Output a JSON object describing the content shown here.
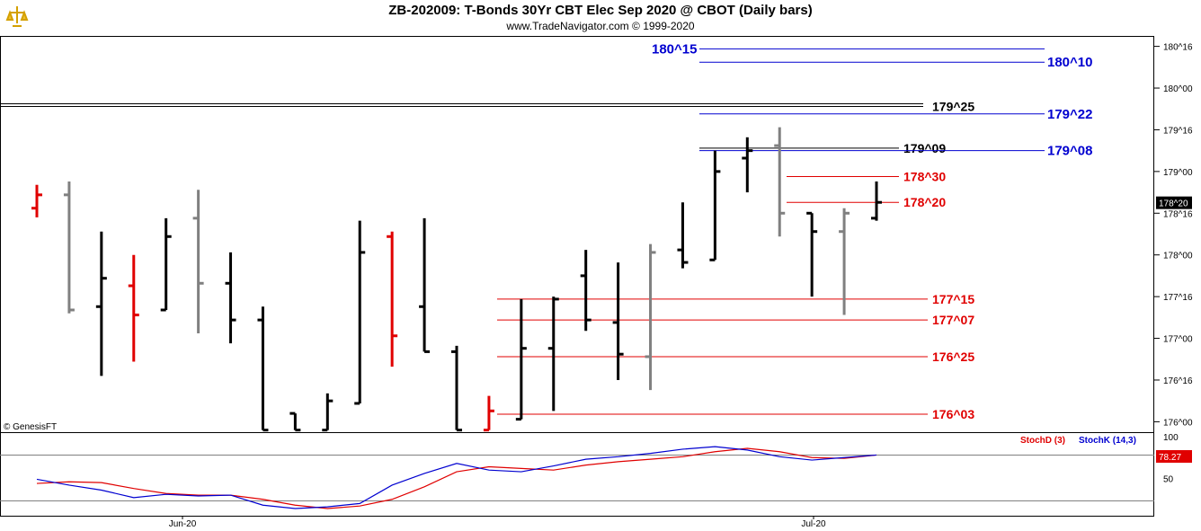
{
  "header": {
    "title": "ZB-202009:  T-Bonds 30Yr CBT Elec Sep 2020 @ CBOT  (Daily bars)",
    "subtitle": "www.TradeNavigator.com © 1999-2020",
    "copyright": "© GenesisFT"
  },
  "chart_data": [
    {
      "type": "bar",
      "subtype": "ohlc",
      "title": "ZB-202009:  T-Bonds 30Yr CBT Elec Sep 2020 @ CBOT  (Daily bars)",
      "units": "points and 32nds",
      "price_axis": {
        "side": "right",
        "range": [
          175.875,
          180.625
        ],
        "ticks": [
          "176^00",
          "176^16",
          "177^00",
          "177^16",
          "178^00",
          "178^16",
          "179^00",
          "179^16",
          "180^00",
          "180^16"
        ],
        "tick_values": [
          176.0,
          176.5,
          177.0,
          177.5,
          178.0,
          178.5,
          179.0,
          179.5,
          180.0,
          180.5
        ],
        "last_price_label": "178^20",
        "last_price": 178.625
      },
      "x_axis": {
        "labels": [
          "Jun-20",
          "Jul-20"
        ]
      },
      "bars": [
        {
          "o": 178.56,
          "h": 178.84,
          "l": 178.45,
          "c": 178.72,
          "color": "#e00000"
        },
        {
          "o": 178.72,
          "h": 178.88,
          "l": 177.3,
          "c": 177.34,
          "color": "#808080"
        },
        {
          "o": 177.38,
          "h": 178.28,
          "l": 176.55,
          "c": 177.72,
          "color": "#000000"
        },
        {
          "o": 177.63,
          "h": 178.0,
          "l": 176.72,
          "c": 177.28,
          "color": "#e00000"
        },
        {
          "o": 177.34,
          "h": 178.44,
          "l": 177.34,
          "c": 178.22,
          "color": "#000000"
        },
        {
          "o": 178.44,
          "h": 178.78,
          "l": 177.06,
          "c": 177.66,
          "color": "#808080"
        },
        {
          "o": 177.66,
          "h": 178.03,
          "l": 176.94,
          "c": 177.22,
          "color": "#000000"
        },
        {
          "o": 177.22,
          "h": 177.38,
          "l": 175.9,
          "c": 175.9,
          "color": "#000000"
        },
        {
          "o": 176.1,
          "h": 176.1,
          "l": 175.9,
          "c": 175.9,
          "color": "#000000"
        },
        {
          "o": 175.9,
          "h": 176.34,
          "l": 175.9,
          "c": 176.25,
          "color": "#000000"
        },
        {
          "o": 176.22,
          "h": 178.41,
          "l": 176.22,
          "c": 178.03,
          "color": "#000000"
        },
        {
          "o": 178.22,
          "h": 178.28,
          "l": 176.66,
          "c": 177.03,
          "color": "#e00000"
        },
        {
          "o": 177.38,
          "h": 178.44,
          "l": 176.84,
          "c": 176.84,
          "color": "#000000"
        },
        {
          "o": 176.84,
          "h": 176.91,
          "l": 175.9,
          "c": 175.9,
          "color": "#000000"
        },
        {
          "o": 175.9,
          "h": 176.31,
          "l": 175.9,
          "c": 176.13,
          "color": "#e00000"
        },
        {
          "o": 176.03,
          "h": 177.47,
          "l": 176.03,
          "c": 176.88,
          "color": "#000000"
        },
        {
          "o": 176.88,
          "h": 177.5,
          "l": 176.13,
          "c": 177.47,
          "color": "#000000"
        },
        {
          "o": 177.75,
          "h": 178.06,
          "l": 177.09,
          "c": 177.22,
          "color": "#000000"
        },
        {
          "o": 177.19,
          "h": 177.91,
          "l": 176.5,
          "c": 176.81,
          "color": "#000000"
        },
        {
          "o": 176.78,
          "h": 178.13,
          "l": 176.38,
          "c": 178.03,
          "color": "#808080"
        },
        {
          "o": 178.06,
          "h": 178.63,
          "l": 177.84,
          "c": 177.91,
          "color": "#000000"
        },
        {
          "o": 177.94,
          "h": 179.25,
          "l": 177.94,
          "c": 179.0,
          "color": "#000000"
        },
        {
          "o": 179.16,
          "h": 179.41,
          "l": 178.75,
          "c": 179.25,
          "color": "#000000"
        },
        {
          "o": 179.31,
          "h": 179.53,
          "l": 178.22,
          "c": 178.5,
          "color": "#808080"
        },
        {
          "o": 178.5,
          "h": 178.5,
          "l": 177.5,
          "c": 178.28,
          "color": "#000000"
        },
        {
          "o": 178.28,
          "h": 178.56,
          "l": 177.28,
          "c": 178.5,
          "color": "#808080"
        },
        {
          "o": 178.44,
          "h": 178.88,
          "l": 178.41,
          "c": 178.63,
          "color": "#000000"
        }
      ],
      "levels": [
        {
          "label": "180^15",
          "value": 180.47,
          "color": "#0000d0",
          "side": "left"
        },
        {
          "label": "180^10",
          "value": 180.31,
          "color": "#0000d0",
          "side": "right"
        },
        {
          "label": "179^25",
          "value": 179.78,
          "color": "#000000",
          "side": "right"
        },
        {
          "label": "179^22",
          "value": 179.69,
          "color": "#0000d0",
          "side": "right"
        },
        {
          "label": "179^09",
          "value": 179.28,
          "color": "#000000",
          "side": "right"
        },
        {
          "label": "179^08",
          "value": 179.25,
          "color": "#0000d0",
          "side": "right"
        },
        {
          "label": "178^30",
          "value": 178.94,
          "color": "#e00000",
          "side": "right"
        },
        {
          "label": "178^20",
          "value": 178.63,
          "color": "#e00000",
          "side": "right"
        },
        {
          "label": "177^15",
          "value": 177.47,
          "color": "#e00000",
          "side": "right"
        },
        {
          "label": "177^07",
          "value": 177.22,
          "color": "#e00000",
          "side": "right"
        },
        {
          "label": "176^25",
          "value": 176.78,
          "color": "#e00000",
          "side": "right"
        },
        {
          "label": "176^03",
          "value": 176.09,
          "color": "#e00000",
          "side": "right"
        }
      ]
    },
    {
      "type": "line",
      "title": "Stochastic",
      "y_axis": {
        "range": [
          0,
          100
        ],
        "ticks": [
          "100",
          "50"
        ],
        "last_value_label": "78.27"
      },
      "series": [
        {
          "name": "StochD (3)",
          "color": "#e00000",
          "values": [
            44,
            46,
            45,
            38,
            32,
            30,
            30,
            25,
            18,
            14,
            17,
            25,
            40,
            58,
            64,
            62,
            60,
            66,
            70,
            73,
            76,
            82,
            86,
            82,
            75,
            74,
            78
          ]
        },
        {
          "name": "StochK (14,3)",
          "color": "#0000d0",
          "values": [
            49,
            42,
            36,
            27,
            31,
            29,
            30,
            18,
            14,
            16,
            20,
            42,
            56,
            68,
            60,
            58,
            65,
            73,
            76,
            80,
            85,
            88,
            84,
            76,
            72,
            75,
            78
          ]
        }
      ]
    }
  ]
}
